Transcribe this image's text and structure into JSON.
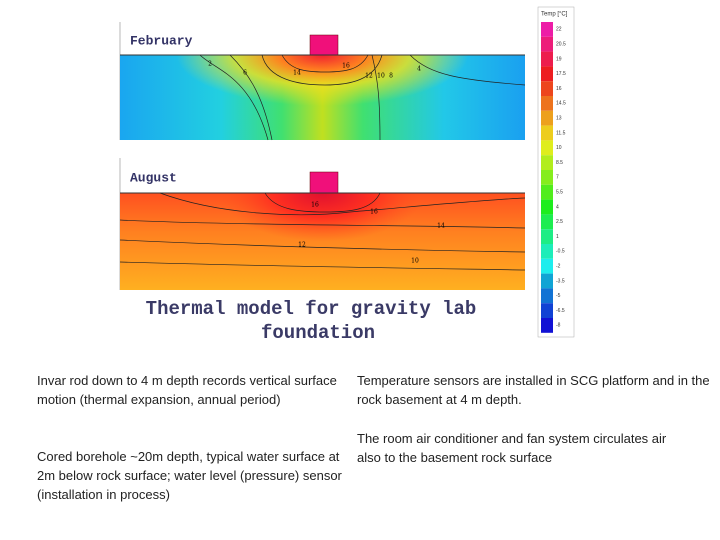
{
  "figure": {
    "panels": [
      {
        "label": "February",
        "contour_labels": [
          2,
          6,
          14,
          16,
          12,
          10,
          8,
          4
        ]
      },
      {
        "label": "August",
        "contour_labels": [
          16,
          16,
          14,
          12,
          10
        ]
      }
    ],
    "colorbar": {
      "title": "Temp [°C]",
      "labels": [
        22,
        20.5,
        19,
        17.5,
        16,
        14.5,
        13,
        11.5,
        10,
        8.5,
        7,
        5.5,
        4,
        2.5,
        1,
        -0.5,
        -2,
        -3.5,
        -5,
        -6.5,
        -8
      ]
    },
    "title": [
      "Thermal model for gravity lab",
      "foundation"
    ]
  },
  "text": {
    "left": [
      "Invar rod down to 4 m depth records vertical surface motion (thermal expansion, annual period)",
      "Cored borehole ~20m depth, typical water surface at 2m below rock surface; water level (pressure) sensor (installation in process)"
    ],
    "right": [
      "Temperature sensors are installed in SCG platform and in the rock basement at 4 m depth.",
      "The room air conditioner and fan system circulates air also to the basement rock surface"
    ]
  }
}
